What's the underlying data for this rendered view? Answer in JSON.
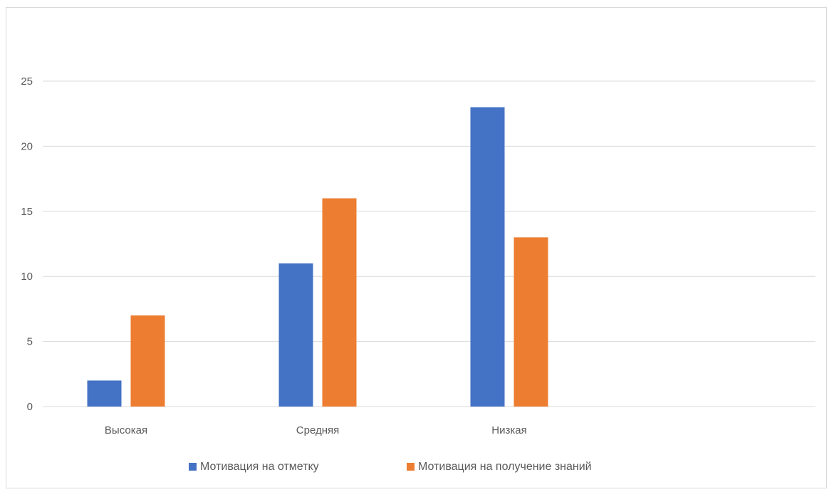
{
  "chart_data": {
    "type": "bar",
    "title": "",
    "xlabel": "",
    "ylabel": "",
    "categories": [
      "Высокая",
      "Средняя",
      "Низкая"
    ],
    "series": [
      {
        "name": "Мотивация на отметку",
        "values": [
          2,
          11,
          23
        ],
        "color": "#4472c4"
      },
      {
        "name": "Мотивация на получение знаний",
        "values": [
          7,
          16,
          13
        ],
        "color": "#ed7d31"
      }
    ],
    "ylim": [
      0,
      25
    ],
    "yticks": [
      0,
      5,
      10,
      15,
      20,
      25
    ],
    "grid": true,
    "legend_position": "bottom"
  }
}
